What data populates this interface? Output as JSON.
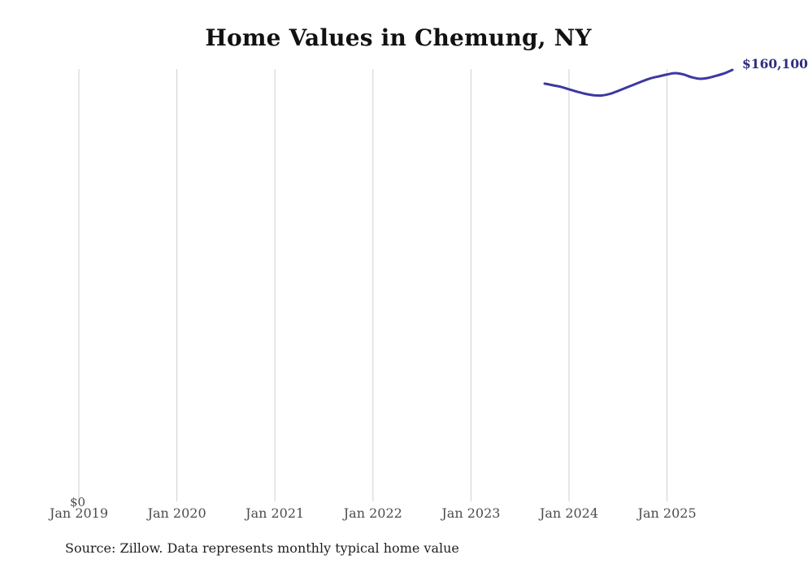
{
  "header": {
    "title": "Home Values in Chemung, NY"
  },
  "footer": {
    "source_note": "Source: Zillow. Data represents monthly typical home value"
  },
  "chart_data": {
    "type": "line",
    "title": "Home Values in Chemung, NY",
    "xlabel": "",
    "ylabel": "",
    "x_tick_labels": [
      "Jan 2019",
      "Jan 2020",
      "Jan 2021",
      "Jan 2022",
      "Jan 2023",
      "Jan 2024",
      "Jan 2025"
    ],
    "y_zero_label": "$0",
    "end_label": "$160,100",
    "ylim": [
      0,
      160400
    ],
    "grid": "vertical-only",
    "legend": "none",
    "colors": {
      "line": "#3d38a1",
      "end_label": "#2e2e7c",
      "gridline": "#cfcfcf",
      "tick_text": "#4c4c4c"
    },
    "series": [
      {
        "name": "Monthly typical home value",
        "months": [
          "Sep 2023",
          "Oct 2023",
          "Nov 2023",
          "Dec 2023",
          "Jan 2024",
          "Feb 2024",
          "Mar 2024",
          "Apr 2024",
          "May 2024",
          "Jun 2024",
          "Jul 2024",
          "Aug 2024",
          "Sep 2024",
          "Oct 2024",
          "Nov 2024",
          "Dec 2024",
          "Jan 2025",
          "Feb 2025",
          "Mar 2025",
          "Apr 2025",
          "May 2025",
          "Jun 2025",
          "Jul 2025",
          "Aug 2025"
        ],
        "values": [
          155000,
          154400,
          153800,
          152900,
          152000,
          151200,
          150700,
          150600,
          151200,
          152300,
          153500,
          154700,
          155900,
          157000,
          157700,
          158400,
          158900,
          158400,
          157400,
          156800,
          157100,
          157900,
          158800,
          160100
        ]
      }
    ]
  }
}
